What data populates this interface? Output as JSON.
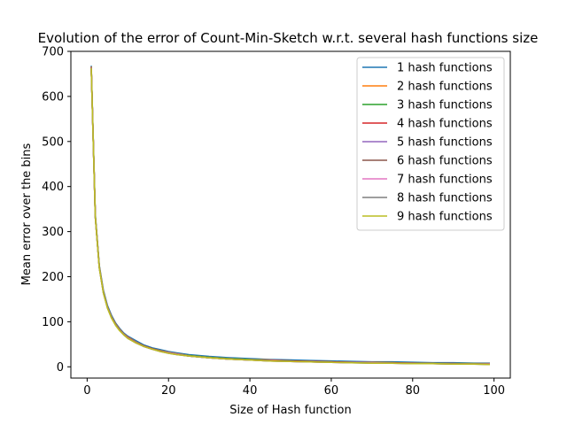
{
  "chart_data": {
    "type": "line",
    "title": "Evolution of the error of Count-Min-Sketch w.r.t. several hash functions size",
    "xlabel": "Size of Hash function",
    "ylabel": "Mean error over the bins",
    "xlim": [
      -4,
      104
    ],
    "ylim": [
      -25,
      700
    ],
    "xticks": [
      0,
      20,
      40,
      60,
      80,
      100
    ],
    "yticks": [
      0,
      100,
      200,
      300,
      400,
      500,
      600,
      700
    ],
    "grid": false,
    "legend_position": "top-right",
    "x": [
      1,
      2,
      3,
      4,
      5,
      6,
      7,
      8,
      9,
      10,
      12,
      14,
      16,
      18,
      20,
      22,
      25,
      30,
      35,
      40,
      45,
      50,
      55,
      60,
      65,
      70,
      75,
      80,
      85,
      90,
      95,
      99
    ],
    "series": [
      {
        "name": "1 hash functions",
        "color": "#1f77b4",
        "values": [
          668,
          338,
          225,
          170,
          136,
          114,
          97,
          85,
          75,
          68,
          58,
          48,
          42,
          38,
          34,
          31,
          27,
          23,
          20,
          18,
          16,
          15,
          14,
          13,
          12,
          11,
          11,
          10,
          9,
          9,
          8,
          8
        ]
      },
      {
        "name": "2 hash functions",
        "color": "#ff7f0e",
        "values": [
          666,
          335,
          222,
          167,
          133,
          111,
          95,
          83,
          73,
          66,
          55,
          46,
          40,
          36,
          32,
          29,
          25,
          21,
          18,
          16,
          15,
          13,
          12,
          11,
          10,
          10,
          9,
          8,
          8,
          7,
          7,
          7
        ]
      },
      {
        "name": "3 hash functions",
        "color": "#2ca02c",
        "values": [
          665,
          334,
          221,
          166,
          132,
          110,
          94,
          82,
          72,
          65,
          54,
          46,
          40,
          35,
          31,
          28,
          25,
          21,
          18,
          16,
          14,
          13,
          12,
          11,
          10,
          9,
          9,
          8,
          8,
          7,
          7,
          6
        ]
      },
      {
        "name": "4 hash functions",
        "color": "#d62728",
        "values": [
          665,
          333,
          221,
          165,
          132,
          110,
          94,
          82,
          72,
          65,
          54,
          46,
          40,
          35,
          31,
          28,
          24,
          20,
          17,
          15,
          14,
          13,
          12,
          11,
          10,
          9,
          9,
          8,
          7,
          7,
          6,
          6
        ]
      },
      {
        "name": "5 hash functions",
        "color": "#9467bd",
        "values": [
          664,
          333,
          220,
          165,
          131,
          109,
          93,
          81,
          72,
          64,
          54,
          45,
          39,
          35,
          31,
          28,
          24,
          20,
          17,
          15,
          14,
          12,
          11,
          10,
          10,
          9,
          8,
          8,
          7,
          7,
          6,
          6
        ]
      },
      {
        "name": "6 hash functions",
        "color": "#8c564b",
        "values": [
          664,
          332,
          220,
          165,
          131,
          109,
          93,
          81,
          71,
          64,
          53,
          45,
          39,
          35,
          31,
          28,
          24,
          20,
          17,
          15,
          13,
          12,
          11,
          10,
          9,
          9,
          8,
          8,
          7,
          7,
          6,
          6
        ]
      },
      {
        "name": "7 hash functions",
        "color": "#e377c2",
        "values": [
          664,
          332,
          220,
          164,
          131,
          109,
          93,
          81,
          71,
          64,
          53,
          45,
          39,
          34,
          31,
          28,
          24,
          20,
          17,
          15,
          13,
          12,
          11,
          10,
          9,
          9,
          8,
          7,
          7,
          6,
          6,
          6
        ]
      },
      {
        "name": "8 hash functions",
        "color": "#7f7f7f",
        "values": [
          663,
          332,
          220,
          164,
          131,
          109,
          93,
          81,
          71,
          63,
          53,
          45,
          39,
          34,
          30,
          27,
          24,
          20,
          17,
          15,
          13,
          12,
          11,
          10,
          9,
          8,
          8,
          7,
          7,
          6,
          6,
          5
        ]
      },
      {
        "name": "9 hash functions",
        "color": "#bcbd22",
        "values": [
          663,
          332,
          219,
          164,
          130,
          108,
          92,
          80,
          71,
          63,
          53,
          45,
          39,
          34,
          30,
          27,
          24,
          20,
          17,
          15,
          13,
          12,
          11,
          10,
          9,
          8,
          8,
          7,
          7,
          6,
          6,
          5
        ]
      }
    ]
  }
}
